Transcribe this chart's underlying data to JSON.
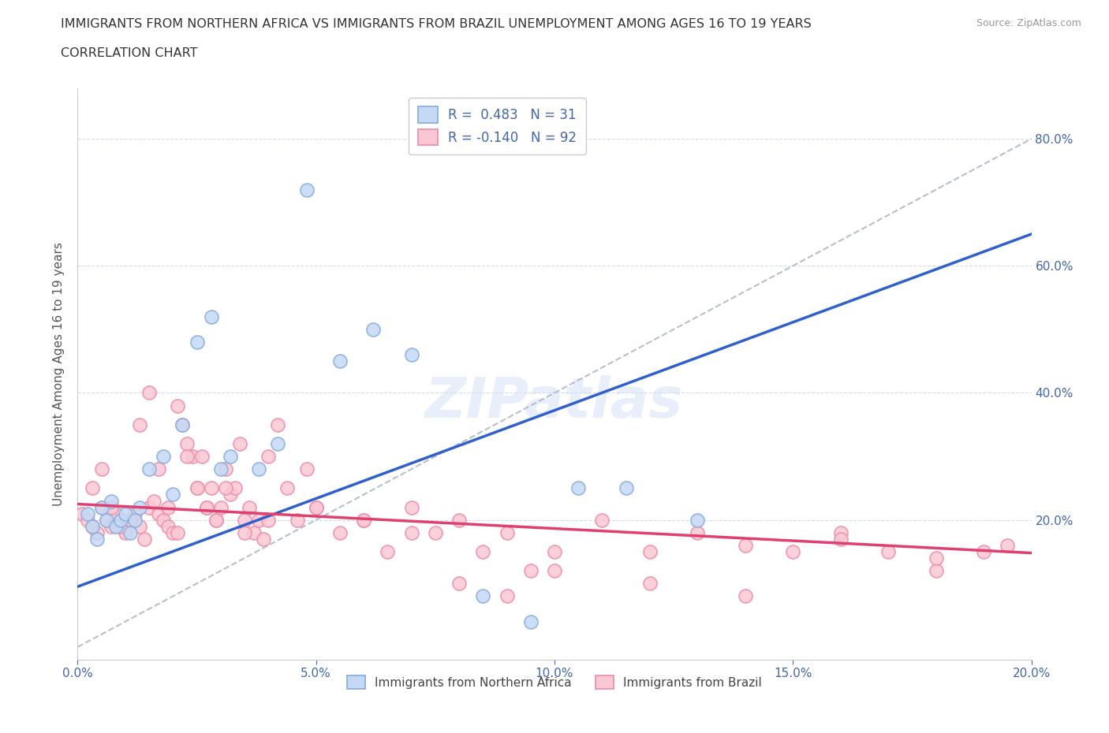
{
  "title_line1": "IMMIGRANTS FROM NORTHERN AFRICA VS IMMIGRANTS FROM BRAZIL UNEMPLOYMENT AMONG AGES 16 TO 19 YEARS",
  "title_line2": "CORRELATION CHART",
  "source": "Source: ZipAtlas.com",
  "ylabel": "Unemployment Among Ages 16 to 19 years",
  "xlim": [
    0.0,
    0.2
  ],
  "ylim": [
    -0.02,
    0.88
  ],
  "xticks": [
    0.0,
    0.05,
    0.1,
    0.15,
    0.2
  ],
  "yticks": [
    0.2,
    0.4,
    0.6,
    0.8
  ],
  "xtick_labels": [
    "0.0%",
    "5.0%",
    "10.0%",
    "15.0%",
    "20.0%"
  ],
  "ytick_labels_right": [
    "20.0%",
    "40.0%",
    "60.0%",
    "80.0%"
  ],
  "legend_label1": "Immigrants from Northern Africa",
  "legend_label2": "Immigrants from Brazil",
  "color_blue_edge": "#8ab0de",
  "color_pink_edge": "#f090aa",
  "blue_face": "#c5d9f5",
  "pink_face": "#fac8d5",
  "trend_blue": "#3060cc",
  "trend_pink": "#e04070",
  "ref_line_color": "#b0b8c8",
  "title_color": "#333333",
  "axis_label_color": "#4466aa",
  "grid_color": "#d0d8e8",
  "watermark": "ZIPatlas",
  "blue_points_x": [
    0.002,
    0.003,
    0.004,
    0.005,
    0.006,
    0.007,
    0.008,
    0.009,
    0.01,
    0.011,
    0.012,
    0.013,
    0.015,
    0.018,
    0.02,
    0.022,
    0.025,
    0.028,
    0.03,
    0.032,
    0.038,
    0.042,
    0.048,
    0.055,
    0.062,
    0.07,
    0.085,
    0.095,
    0.105,
    0.115,
    0.13
  ],
  "blue_points_y": [
    0.21,
    0.19,
    0.17,
    0.22,
    0.2,
    0.23,
    0.19,
    0.2,
    0.21,
    0.18,
    0.2,
    0.22,
    0.28,
    0.3,
    0.24,
    0.35,
    0.48,
    0.52,
    0.28,
    0.3,
    0.28,
    0.32,
    0.72,
    0.45,
    0.5,
    0.46,
    0.08,
    0.04,
    0.25,
    0.25,
    0.2
  ],
  "pink_points_x": [
    0.001,
    0.002,
    0.003,
    0.004,
    0.005,
    0.006,
    0.007,
    0.008,
    0.009,
    0.01,
    0.011,
    0.012,
    0.013,
    0.014,
    0.015,
    0.016,
    0.017,
    0.018,
    0.019,
    0.02,
    0.021,
    0.022,
    0.023,
    0.024,
    0.025,
    0.026,
    0.027,
    0.028,
    0.029,
    0.03,
    0.031,
    0.032,
    0.033,
    0.034,
    0.035,
    0.036,
    0.037,
    0.038,
    0.039,
    0.04,
    0.042,
    0.044,
    0.046,
    0.048,
    0.05,
    0.055,
    0.06,
    0.065,
    0.07,
    0.075,
    0.08,
    0.085,
    0.09,
    0.095,
    0.1,
    0.11,
    0.12,
    0.13,
    0.14,
    0.15,
    0.003,
    0.005,
    0.007,
    0.009,
    0.011,
    0.013,
    0.015,
    0.017,
    0.019,
    0.021,
    0.023,
    0.025,
    0.027,
    0.029,
    0.031,
    0.035,
    0.04,
    0.05,
    0.06,
    0.07,
    0.08,
    0.09,
    0.1,
    0.12,
    0.14,
    0.16,
    0.17,
    0.18,
    0.19,
    0.195,
    0.16,
    0.18
  ],
  "pink_points_y": [
    0.21,
    0.2,
    0.19,
    0.18,
    0.22,
    0.2,
    0.19,
    0.21,
    0.2,
    0.18,
    0.2,
    0.21,
    0.19,
    0.17,
    0.22,
    0.23,
    0.21,
    0.2,
    0.19,
    0.18,
    0.38,
    0.35,
    0.32,
    0.3,
    0.25,
    0.3,
    0.22,
    0.25,
    0.2,
    0.22,
    0.28,
    0.24,
    0.25,
    0.32,
    0.2,
    0.22,
    0.18,
    0.2,
    0.17,
    0.3,
    0.35,
    0.25,
    0.2,
    0.28,
    0.22,
    0.18,
    0.2,
    0.15,
    0.22,
    0.18,
    0.2,
    0.15,
    0.18,
    0.12,
    0.15,
    0.2,
    0.15,
    0.18,
    0.16,
    0.15,
    0.25,
    0.28,
    0.22,
    0.19,
    0.2,
    0.35,
    0.4,
    0.28,
    0.22,
    0.18,
    0.3,
    0.25,
    0.22,
    0.2,
    0.25,
    0.18,
    0.2,
    0.22,
    0.2,
    0.18,
    0.1,
    0.08,
    0.12,
    0.1,
    0.08,
    0.18,
    0.15,
    0.12,
    0.15,
    0.16,
    0.17,
    0.14
  ],
  "blue_trend_x": [
    0.0,
    0.2
  ],
  "blue_trend_y": [
    0.095,
    0.65
  ],
  "pink_trend_x": [
    0.0,
    0.2
  ],
  "pink_trend_y": [
    0.225,
    0.148
  ],
  "ref_line_x": [
    0.0,
    0.2
  ],
  "ref_line_y": [
    0.0,
    0.8
  ]
}
